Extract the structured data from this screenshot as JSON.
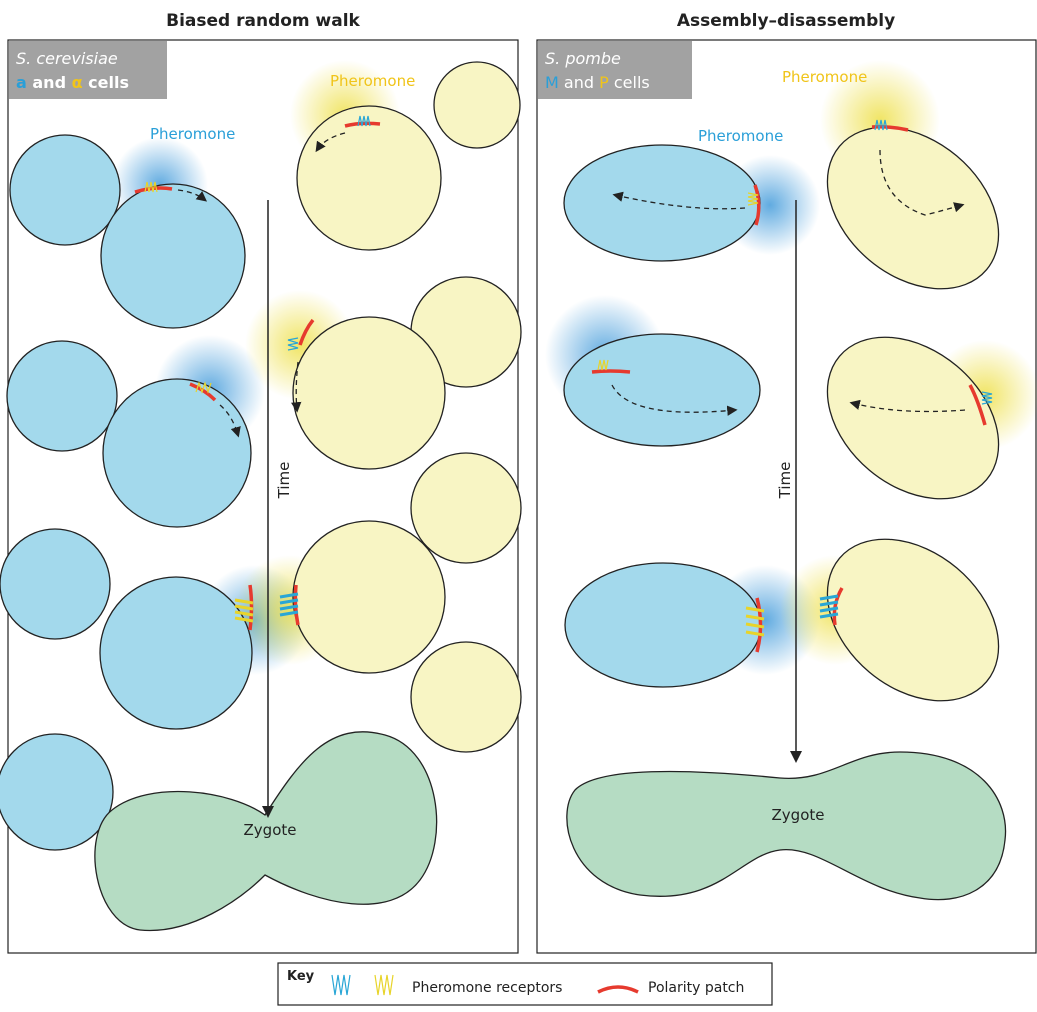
{
  "panels": [
    {
      "title": "Biased random walk",
      "species": "S. cerevisiae",
      "type_1": "a",
      "conjunction": "and",
      "type_2": "α",
      "suffix": "cells",
      "pheromone_yellow": "Pheromone",
      "pheromone_blue": "Pheromone",
      "time": "Time",
      "zygote": "Zygote"
    },
    {
      "title": "Assembly–disassembly",
      "species": "S. pombe",
      "type_1": "M",
      "conjunction": "and",
      "type_2": "P",
      "suffix": "cells",
      "pheromone_yellow": "Pheromone",
      "pheromone_blue": "Pheromone",
      "time": "Time",
      "zygote": "Zygote"
    }
  ],
  "key": {
    "title": "Key",
    "receptors": "Pheromone receptors",
    "patch": "Polarity patch"
  }
}
